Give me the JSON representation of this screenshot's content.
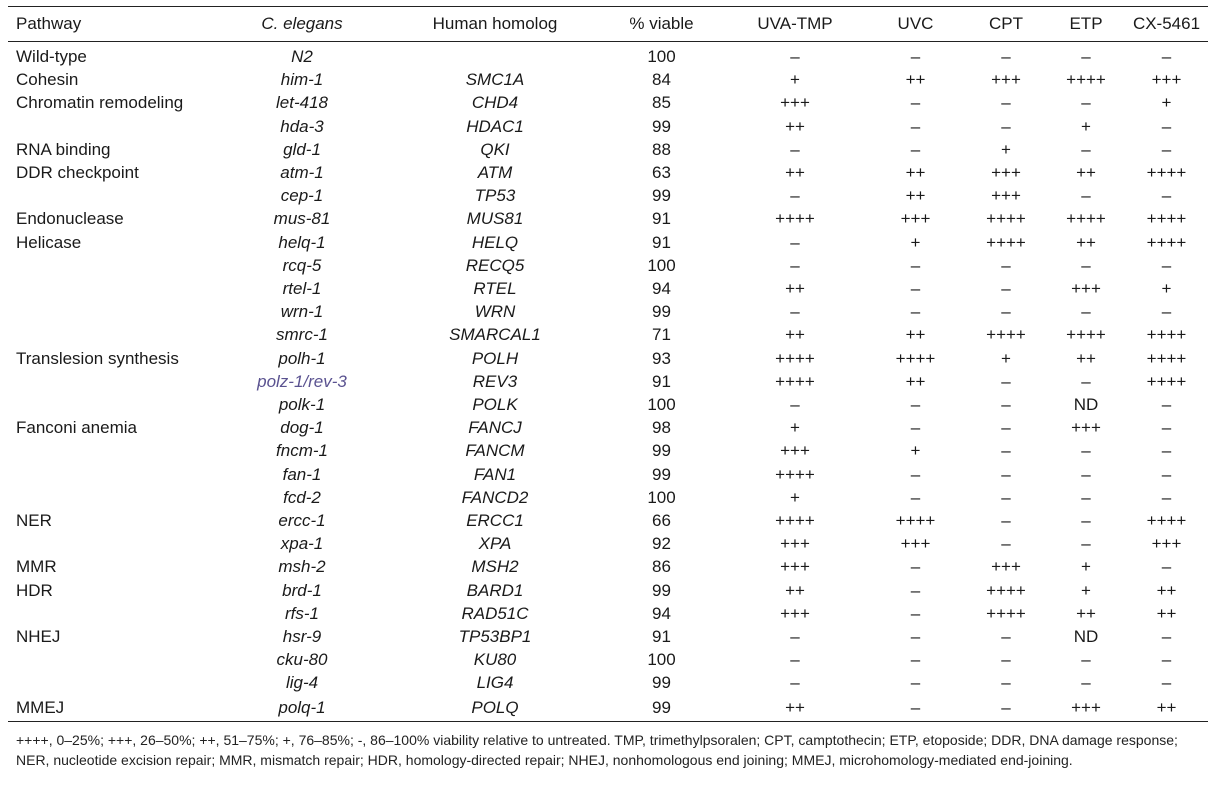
{
  "table": {
    "headers": {
      "pathway": "Pathway",
      "gene": "C. elegans",
      "homolog": "Human homolog",
      "viable": "% viable",
      "uva_tmp": "UVA-TMP",
      "uvc": "UVC",
      "cpt": "CPT",
      "etp": "ETP",
      "cx5461": "CX-5461"
    },
    "rows": [
      {
        "pathway": "Wild-type",
        "gene": "N2",
        "homolog": "",
        "viable": "100",
        "uva_tmp": "–",
        "uvc": "–",
        "cpt": "–",
        "etp": "–",
        "cx5461": "–"
      },
      {
        "pathway": "Cohesin",
        "gene": "him-1",
        "homolog": "SMC1A",
        "viable": "84",
        "uva_tmp": "+",
        "uvc": "++",
        "cpt": "+++",
        "etp": "++++",
        "cx5461": "+++"
      },
      {
        "pathway": "Chromatin remodeling",
        "gene": "let-418",
        "homolog": "CHD4",
        "viable": "85",
        "uva_tmp": "+++",
        "uvc": "–",
        "cpt": "–",
        "etp": "–",
        "cx5461": "+"
      },
      {
        "pathway": "",
        "gene": "hda-3",
        "homolog": "HDAC1",
        "viable": "99",
        "uva_tmp": "++",
        "uvc": "–",
        "cpt": "–",
        "etp": "+",
        "cx5461": "–"
      },
      {
        "pathway": "RNA binding",
        "gene": "gld-1",
        "homolog": "QKI",
        "viable": "88",
        "uva_tmp": "–",
        "uvc": "–",
        "cpt": "+",
        "etp": "–",
        "cx5461": "–"
      },
      {
        "pathway": "DDR checkpoint",
        "gene": "atm-1",
        "homolog": "ATM",
        "viable": "63",
        "uva_tmp": "++",
        "uvc": "++",
        "cpt": "+++",
        "etp": "++",
        "cx5461": "++++"
      },
      {
        "pathway": "",
        "gene": "cep-1",
        "homolog": "TP53",
        "viable": "99",
        "uva_tmp": "–",
        "uvc": "++",
        "cpt": "+++",
        "etp": "–",
        "cx5461": "–"
      },
      {
        "pathway": "Endonuclease",
        "gene": "mus-81",
        "homolog": "MUS81",
        "viable": "91",
        "uva_tmp": "++++",
        "uvc": "+++",
        "cpt": "++++",
        "etp": "++++",
        "cx5461": "++++"
      },
      {
        "pathway": "Helicase",
        "gene": "helq-1",
        "homolog": "HELQ",
        "viable": "91",
        "uva_tmp": "–",
        "uvc": "+",
        "cpt": "++++",
        "etp": "++",
        "cx5461": "++++"
      },
      {
        "pathway": "",
        "gene": "rcq-5",
        "homolog": "RECQ5",
        "viable": "100",
        "uva_tmp": "–",
        "uvc": "–",
        "cpt": "–",
        "etp": "–",
        "cx5461": "–"
      },
      {
        "pathway": "",
        "gene": "rtel-1",
        "homolog": "RTEL",
        "viable": "94",
        "uva_tmp": "++",
        "uvc": "–",
        "cpt": "–",
        "etp": "+++",
        "cx5461": "+"
      },
      {
        "pathway": "",
        "gene": "wrn-1",
        "homolog": "WRN",
        "viable": "99",
        "uva_tmp": "–",
        "uvc": "–",
        "cpt": "–",
        "etp": "–",
        "cx5461": "–"
      },
      {
        "pathway": "",
        "gene": "smrc-1",
        "homolog": "SMARCAL1",
        "viable": "71",
        "uva_tmp": "++",
        "uvc": "++",
        "cpt": "++++",
        "etp": "++++",
        "cx5461": "++++"
      },
      {
        "pathway": "Translesion synthesis",
        "gene": "polh-1",
        "homolog": "POLH",
        "viable": "93",
        "uva_tmp": "++++",
        "uvc": "++++",
        "cpt": "+",
        "etp": "++",
        "cx5461": "++++"
      },
      {
        "pathway": "",
        "gene": "polz-1/rev-3",
        "gene_link": true,
        "homolog": "REV3",
        "viable": "91",
        "uva_tmp": "++++",
        "uvc": "++",
        "cpt": "–",
        "etp": "–",
        "cx5461": "++++"
      },
      {
        "pathway": "",
        "gene": "polk-1",
        "homolog": "POLK",
        "viable": "100",
        "uva_tmp": "–",
        "uvc": "–",
        "cpt": "–",
        "etp": "ND",
        "cx5461": "–"
      },
      {
        "pathway": "Fanconi anemia",
        "gene": "dog-1",
        "homolog": "FANCJ",
        "viable": "98",
        "uva_tmp": "+",
        "uvc": "–",
        "cpt": "–",
        "etp": "+++",
        "cx5461": "–"
      },
      {
        "pathway": "",
        "gene": "fncm-1",
        "homolog": "FANCM",
        "viable": "99",
        "uva_tmp": "+++",
        "uvc": "+",
        "cpt": "–",
        "etp": "–",
        "cx5461": "–"
      },
      {
        "pathway": "",
        "gene": "fan-1",
        "homolog": "FAN1",
        "viable": "99",
        "uva_tmp": "++++",
        "uvc": "–",
        "cpt": "–",
        "etp": "–",
        "cx5461": "–"
      },
      {
        "pathway": "",
        "gene": "fcd-2",
        "homolog": "FANCD2",
        "viable": "100",
        "uva_tmp": "+",
        "uvc": "–",
        "cpt": "–",
        "etp": "–",
        "cx5461": "–"
      },
      {
        "pathway": "NER",
        "gene": "ercc-1",
        "homolog": "ERCC1",
        "viable": "66",
        "uva_tmp": "++++",
        "uvc": "++++",
        "cpt": "–",
        "etp": "–",
        "cx5461": "++++"
      },
      {
        "pathway": "",
        "gene": "xpa-1",
        "homolog": "XPA",
        "viable": "92",
        "uva_tmp": "+++",
        "uvc": "+++",
        "cpt": "–",
        "etp": "–",
        "cx5461": "+++"
      },
      {
        "pathway": "MMR",
        "gene": "msh-2",
        "homolog": "MSH2",
        "viable": "86",
        "uva_tmp": "+++",
        "uvc": "–",
        "cpt": "+++",
        "etp": "+",
        "cx5461": "–"
      },
      {
        "pathway": "HDR",
        "gene": "brd-1",
        "homolog": "BARD1",
        "viable": "99",
        "uva_tmp": "++",
        "uvc": "–",
        "cpt": "++++",
        "etp": "+",
        "cx5461": "++"
      },
      {
        "pathway": "",
        "gene": "rfs-1",
        "homolog": "RAD51C",
        "viable": "94",
        "uva_tmp": "+++",
        "uvc": "–",
        "cpt": "++++",
        "etp": "++",
        "cx5461": "++"
      },
      {
        "pathway": "NHEJ",
        "gene": "hsr-9",
        "homolog": "TP53BP1",
        "viable": "91",
        "uva_tmp": "–",
        "uvc": "–",
        "cpt": "–",
        "etp": "ND",
        "cx5461": "–"
      },
      {
        "pathway": "",
        "gene": "cku-80",
        "homolog": "KU80",
        "viable": "100",
        "uva_tmp": "–",
        "uvc": "–",
        "cpt": "–",
        "etp": "–",
        "cx5461": "–"
      },
      {
        "pathway": "",
        "gene": "lig-4",
        "homolog": "LIG4",
        "viable": "99",
        "uva_tmp": "–",
        "uvc": "–",
        "cpt": "–",
        "etp": "–",
        "cx5461": "–"
      },
      {
        "pathway": "MMEJ",
        "gene": "polq-1",
        "homolog": "POLQ",
        "viable": "99",
        "uva_tmp": "++",
        "uvc": "–",
        "cpt": "–",
        "etp": "+++",
        "cx5461": "++"
      }
    ]
  },
  "footnote": "++++, 0–25%; +++, 26–50%; ++, 51–75%; +, 76–85%; -, 86–100% viability relative to untreated. TMP, trimethylpsoralen; CPT, camptothecin; ETP, etoposide; DDR, DNA damage response; NER, nucleotide excision repair; MMR, mismatch repair; HDR, homology-directed repair; NHEJ, nonhomologous end joining; MMEJ, microhomology-mediated end-joining."
}
